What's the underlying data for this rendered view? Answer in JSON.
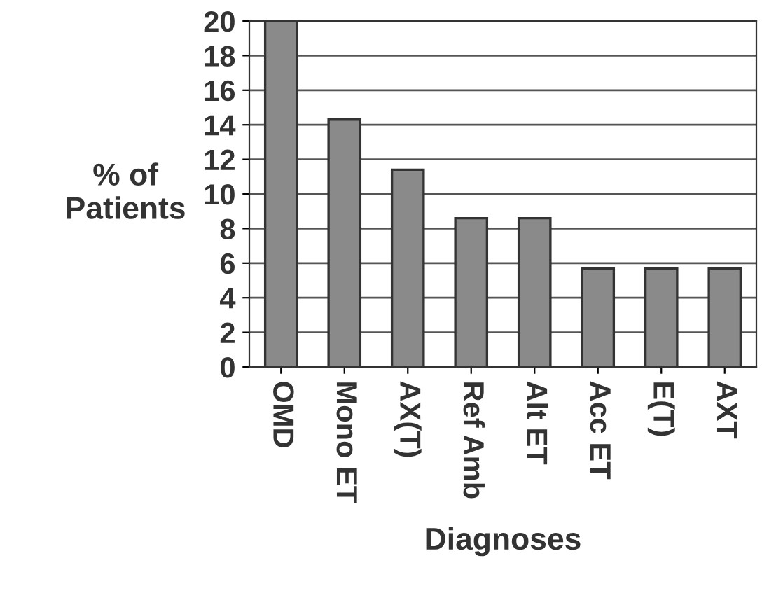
{
  "chart_data": {
    "type": "bar",
    "xlabel": "Diagnoses",
    "ylabel": "% of\nPatients",
    "categories": [
      "OMD",
      "Mono ET",
      "AX(T)",
      "Ref Amb",
      "Alt ET",
      "Acc ET",
      "E(T)",
      "AXT"
    ],
    "values": [
      20,
      14.3,
      11.4,
      8.6,
      8.6,
      5.7,
      5.7,
      5.7
    ],
    "color": "#8a8a8a",
    "ylim": [
      0,
      20
    ],
    "yticks": [
      0,
      2,
      4,
      6,
      8,
      10,
      12,
      14,
      16,
      18,
      20
    ],
    "grid": "y"
  }
}
